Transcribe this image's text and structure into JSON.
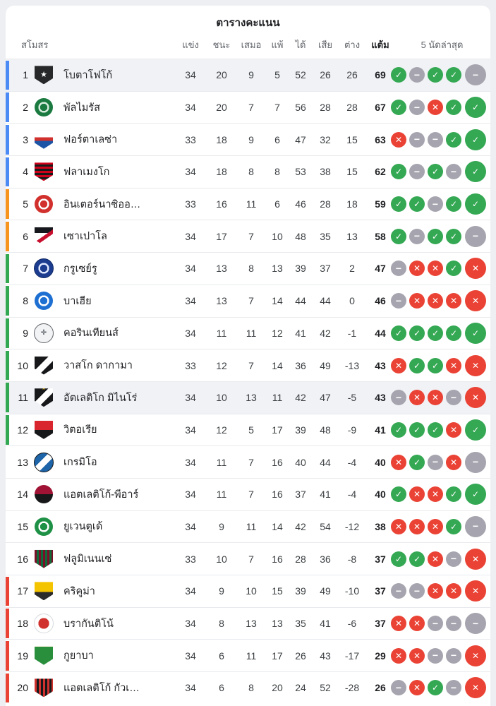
{
  "title": "ตารางคะแนน",
  "columns": {
    "club": "สโมสร",
    "played": "แข่ง",
    "won": "ชนะ",
    "drawn": "เสมอ",
    "lost": "แพ้",
    "gf": "ได้",
    "ga": "เสีย",
    "gd": "ต่าง",
    "points": "แต้ม",
    "last5": "5 นัดล่าสุด"
  },
  "colors": {
    "page_bg": "#edeff2",
    "card_bg": "#ffffff",
    "highlight_row_bg": "#f1f2f6",
    "separator": "#e8eaed",
    "header_text": "#5f6368",
    "body_text": "#202124",
    "number_text": "#3c4043"
  },
  "zone_colors": {
    "blue": "#4c8bf5",
    "orange": "#f7941e",
    "green": "#33a852",
    "red": "#ea4335"
  },
  "form_colors": {
    "W": "#34a853",
    "D": "#a6a5af",
    "L": "#ea4335"
  },
  "form_glyphs": {
    "W": "✓",
    "D": "−",
    "L": "✕"
  },
  "form_icon_names": {
    "W": "win-check-icon",
    "D": "draw-minus-icon",
    "L": "loss-cross-icon"
  },
  "teams": [
    {
      "rank": 1,
      "name": "โบตาโฟโก้",
      "zone": "blue",
      "highlight": true,
      "played": 34,
      "won": 20,
      "drawn": 9,
      "lost": 5,
      "gf": 52,
      "ga": 26,
      "gd": 26,
      "points": 69,
      "form": [
        "W",
        "D",
        "W",
        "W",
        "D"
      ],
      "badge": {
        "shape": "shield",
        "pattern": "solid",
        "c1": "#26282a",
        "glyph": "★",
        "glyph_color": "#ffffff",
        "glyph_size": 11,
        "border": "#9aa0a6"
      }
    },
    {
      "rank": 2,
      "name": "พัลไมรัส",
      "zone": "blue",
      "highlight": false,
      "played": 34,
      "won": 20,
      "drawn": 7,
      "lost": 7,
      "gf": 56,
      "ga": 28,
      "gd": 28,
      "points": 67,
      "form": [
        "W",
        "D",
        "L",
        "W",
        "W"
      ],
      "badge": {
        "shape": "circle",
        "pattern": "ringCenter",
        "c1": "#1a7a40",
        "c2": "#d7ecdc"
      }
    },
    {
      "rank": 3,
      "name": "ฟอร์ตาเลซ่า",
      "zone": "blue",
      "highlight": false,
      "played": 33,
      "won": 18,
      "drawn": 9,
      "lost": 6,
      "gf": 47,
      "ga": 32,
      "gd": 15,
      "points": 63,
      "form": [
        "L",
        "D",
        "D",
        "W",
        "W"
      ],
      "badge": {
        "shape": "shield",
        "pattern": "triH",
        "c1": "#1c55a5",
        "c2": "#d0312d",
        "c3": "#ffffff",
        "border": "#c6cbd1"
      }
    },
    {
      "rank": 4,
      "name": "ฟลาเมงโก",
      "zone": "blue",
      "highlight": false,
      "played": 34,
      "won": 18,
      "drawn": 8,
      "lost": 8,
      "gf": 53,
      "ga": 38,
      "gd": 15,
      "points": 62,
      "form": [
        "W",
        "D",
        "W",
        "D",
        "W"
      ],
      "badge": {
        "shape": "shield",
        "pattern": "stripesH",
        "c1": "#d0021b",
        "c2": "#1a1a1a"
      }
    },
    {
      "rank": 5,
      "name": "อินเตอร์นาซิออ…",
      "zone": "orange",
      "highlight": false,
      "played": 33,
      "won": 16,
      "drawn": 11,
      "lost": 6,
      "gf": 46,
      "ga": 28,
      "gd": 18,
      "points": 59,
      "form": [
        "W",
        "W",
        "D",
        "W",
        "W"
      ],
      "badge": {
        "shape": "circle",
        "pattern": "ringCenter",
        "c1": "#d2302c",
        "c2": "#ffffff"
      }
    },
    {
      "rank": 6,
      "name": "เซาเปาโล",
      "zone": "orange",
      "highlight": false,
      "played": 34,
      "won": 17,
      "drawn": 7,
      "lost": 10,
      "gf": 48,
      "ga": 35,
      "gd": 13,
      "points": 58,
      "form": [
        "W",
        "D",
        "W",
        "W",
        "D"
      ],
      "badge": {
        "shape": "shield",
        "pattern": "bandTopDiag",
        "c1": "#ffffff",
        "c2": "#16181d",
        "c3": "#c8102e",
        "border": "#b9bec4"
      }
    },
    {
      "rank": 7,
      "name": "กรูเซย์รู",
      "zone": "green",
      "highlight": false,
      "played": 34,
      "won": 13,
      "drawn": 8,
      "lost": 13,
      "gf": 39,
      "ga": 37,
      "gd": 2,
      "points": 47,
      "form": [
        "D",
        "L",
        "L",
        "W",
        "L"
      ],
      "badge": {
        "shape": "circle",
        "pattern": "ringCenter",
        "c1": "#1b3c8f",
        "c2": "#dfe7ff",
        "border": "#122a66"
      }
    },
    {
      "rank": 8,
      "name": "บาเฮีย",
      "zone": "green",
      "highlight": false,
      "played": 34,
      "won": 13,
      "drawn": 7,
      "lost": 14,
      "gf": 44,
      "ga": 44,
      "gd": 0,
      "points": 46,
      "form": [
        "D",
        "L",
        "L",
        "L",
        "L"
      ],
      "badge": {
        "shape": "circle",
        "pattern": "ringCenter",
        "c1": "#1d6fd2",
        "c2": "#ffffff"
      }
    },
    {
      "rank": 9,
      "name": "คอรินเทียนส์",
      "zone": "green",
      "highlight": false,
      "played": 34,
      "won": 11,
      "drawn": 11,
      "lost": 12,
      "gf": 41,
      "ga": 42,
      "gd": -1,
      "points": 44,
      "form": [
        "W",
        "W",
        "W",
        "W",
        "W"
      ],
      "badge": {
        "shape": "circle",
        "pattern": "solid",
        "c1": "#f2f3f5",
        "glyph": "✛",
        "glyph_color": "#3a3f45",
        "glyph_size": 10,
        "border": "#5f6368"
      }
    },
    {
      "rank": 10,
      "name": "วาสโก ดากามา",
      "zone": "green",
      "highlight": false,
      "played": 33,
      "won": 12,
      "drawn": 7,
      "lost": 14,
      "gf": 36,
      "ga": 49,
      "gd": -13,
      "points": 43,
      "form": [
        "L",
        "W",
        "W",
        "L",
        "L"
      ],
      "badge": {
        "shape": "shield",
        "pattern": "diagBand",
        "c1": "#17181a",
        "c2": "#ffffff"
      }
    },
    {
      "rank": 11,
      "name": "อัตเลติโก มิไนโร่",
      "zone": "green",
      "highlight": true,
      "played": 34,
      "won": 10,
      "drawn": 13,
      "lost": 11,
      "gf": 42,
      "ga": 47,
      "gd": -5,
      "points": 43,
      "form": [
        "D",
        "L",
        "L",
        "D",
        "L"
      ],
      "badge": {
        "shape": "shield",
        "pattern": "diagBand",
        "c1": "#17181a",
        "c2": "#ffffff",
        "star_top": "★",
        "star_color": "#f5c518"
      }
    },
    {
      "rank": 12,
      "name": "วิตอเรีย",
      "zone": "green",
      "highlight": false,
      "played": 34,
      "won": 12,
      "drawn": 5,
      "lost": 17,
      "gf": 39,
      "ga": 48,
      "gd": -9,
      "points": 41,
      "form": [
        "W",
        "W",
        "W",
        "L",
        "W"
      ],
      "badge": {
        "shape": "shield",
        "pattern": "halfH",
        "c1": "#d9262e",
        "c2": "#17181a"
      }
    },
    {
      "rank": 13,
      "name": "เกรมิโอ",
      "zone": null,
      "highlight": false,
      "played": 34,
      "won": 11,
      "drawn": 7,
      "lost": 16,
      "gf": 40,
      "ga": 44,
      "gd": -4,
      "points": 40,
      "form": [
        "L",
        "W",
        "D",
        "L",
        "D"
      ],
      "badge": {
        "shape": "circle",
        "pattern": "diagBand",
        "c1": "#1d64a8",
        "c2": "#ffffff",
        "border": "#17181a"
      }
    },
    {
      "rank": 14,
      "name": "แอตเลติโก้-พีอาร์",
      "zone": null,
      "highlight": false,
      "played": 34,
      "won": 11,
      "drawn": 7,
      "lost": 16,
      "gf": 37,
      "ga": 41,
      "gd": -4,
      "points": 40,
      "form": [
        "W",
        "L",
        "L",
        "W",
        "W"
      ],
      "badge": {
        "shape": "circle",
        "pattern": "halfH",
        "c1": "#a01334",
        "c2": "#17181a"
      }
    },
    {
      "rank": 15,
      "name": "ยูเวนตูเด้",
      "zone": null,
      "highlight": false,
      "played": 34,
      "won": 9,
      "drawn": 11,
      "lost": 14,
      "gf": 42,
      "ga": 54,
      "gd": -12,
      "points": 38,
      "form": [
        "L",
        "L",
        "L",
        "W",
        "D"
      ],
      "badge": {
        "shape": "circle",
        "pattern": "ringCenter",
        "c1": "#1f9146",
        "c2": "#ffffff"
      }
    },
    {
      "rank": 16,
      "name": "ฟลูมิเนนเซ่",
      "zone": null,
      "highlight": false,
      "played": 33,
      "won": 10,
      "drawn": 7,
      "lost": 16,
      "gf": 28,
      "ga": 36,
      "gd": -8,
      "points": 37,
      "form": [
        "W",
        "W",
        "L",
        "D",
        "L"
      ],
      "badge": {
        "shape": "shield",
        "pattern": "stripesV",
        "c1": "#7a1028",
        "c2": "#0f6b3a",
        "border": "#cfd4da"
      }
    },
    {
      "rank": 17,
      "name": "คริคูม่า",
      "zone": "red",
      "highlight": false,
      "played": 34,
      "won": 9,
      "drawn": 10,
      "lost": 15,
      "gf": 39,
      "ga": 49,
      "gd": -10,
      "points": 37,
      "form": [
        "D",
        "D",
        "L",
        "L",
        "L"
      ],
      "badge": {
        "shape": "shield",
        "pattern": "triH",
        "c1": "#2b2b2b",
        "c2": "#f5c400",
        "c3": "#f5c400",
        "border": "#caa500"
      }
    },
    {
      "rank": 18,
      "name": "บรากันติโน้",
      "zone": "red",
      "highlight": false,
      "played": 34,
      "won": 8,
      "drawn": 13,
      "lost": 13,
      "gf": 35,
      "ga": 41,
      "gd": -6,
      "points": 37,
      "form": [
        "L",
        "L",
        "D",
        "D",
        "D"
      ],
      "badge": {
        "shape": "circle",
        "pattern": "dotCenter",
        "c1": "#ffffff",
        "c2": "#d0312d",
        "border": "#d6d9dd"
      }
    },
    {
      "rank": 19,
      "name": "กูยาบา",
      "zone": "red",
      "highlight": false,
      "played": 34,
      "won": 6,
      "drawn": 11,
      "lost": 17,
      "gf": 26,
      "ga": 43,
      "gd": -17,
      "points": 29,
      "form": [
        "L",
        "L",
        "D",
        "D",
        "L"
      ],
      "badge": {
        "shape": "shield",
        "pattern": "solid",
        "c1": "#2a8f3c",
        "border": "#e5b700"
      }
    },
    {
      "rank": 20,
      "name": "แอตเลติโก้ กัวเ…",
      "zone": "red",
      "highlight": false,
      "played": 34,
      "won": 6,
      "drawn": 8,
      "lost": 20,
      "gf": 24,
      "ga": 52,
      "gd": -28,
      "points": 26,
      "form": [
        "D",
        "L",
        "W",
        "D",
        "L"
      ],
      "badge": {
        "shape": "shield",
        "pattern": "stripesV",
        "c1": "#d0312d",
        "c2": "#17181a",
        "border": "#9aa0a6"
      }
    }
  ]
}
